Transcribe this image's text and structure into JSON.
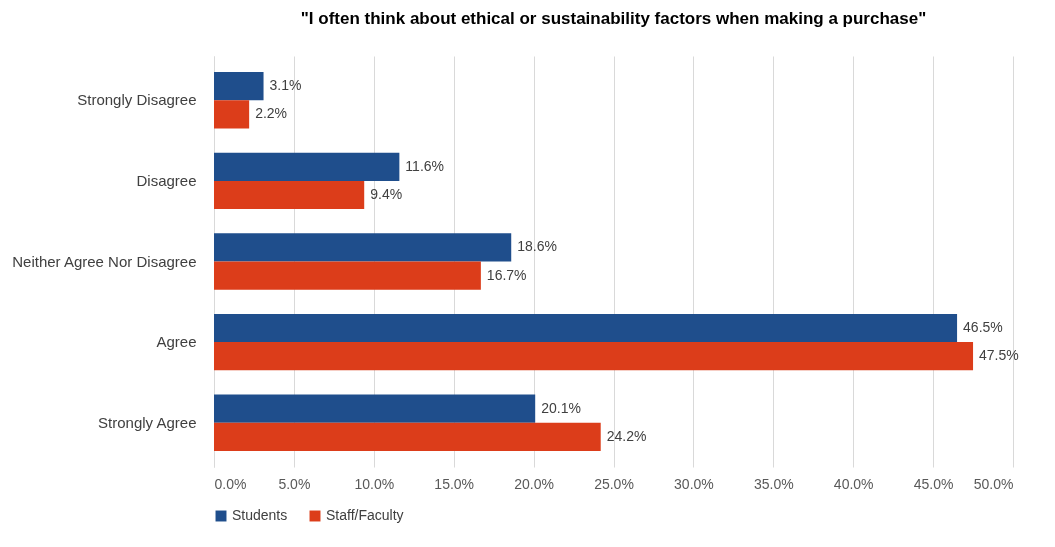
{
  "chart_data": {
    "type": "bar",
    "orientation": "horizontal",
    "title": "\"I often think about ethical or sustainability factors when making a purchase\"",
    "categories": [
      "Strongly Disagree",
      "Disagree",
      "Neither Agree Nor Disagree",
      "Agree",
      "Strongly Agree"
    ],
    "series": [
      {
        "name": "Students",
        "color": "#1f4e8c",
        "values": [
          3.1,
          11.6,
          18.6,
          46.5,
          20.1
        ],
        "value_labels": [
          "3.1%",
          "11.6%",
          "18.6%",
          "46.5%",
          "20.1%"
        ]
      },
      {
        "name": "Staff/Faculty",
        "color": "#dc3d1a",
        "values": [
          2.2,
          9.4,
          16.7,
          47.5,
          24.2
        ],
        "value_labels": [
          "2.2%",
          "9.4%",
          "16.7%",
          "47.5%",
          "24.2%"
        ]
      }
    ],
    "xlim": [
      0,
      50
    ],
    "xticks": [
      {
        "value": 0,
        "label": "0.0%"
      },
      {
        "value": 5,
        "label": "5.0%"
      },
      {
        "value": 10,
        "label": "10.0%"
      },
      {
        "value": 15,
        "label": "15.0%"
      },
      {
        "value": 20,
        "label": "20.0%"
      },
      {
        "value": 25,
        "label": "25.0%"
      },
      {
        "value": 30,
        "label": "30.0%"
      },
      {
        "value": 35,
        "label": "35.0%"
      },
      {
        "value": 40,
        "label": "40.0%"
      },
      {
        "value": 45,
        "label": "45.0%"
      },
      {
        "value": 50,
        "label": "50.0%"
      }
    ],
    "grid": "x",
    "legend": "bottom"
  }
}
